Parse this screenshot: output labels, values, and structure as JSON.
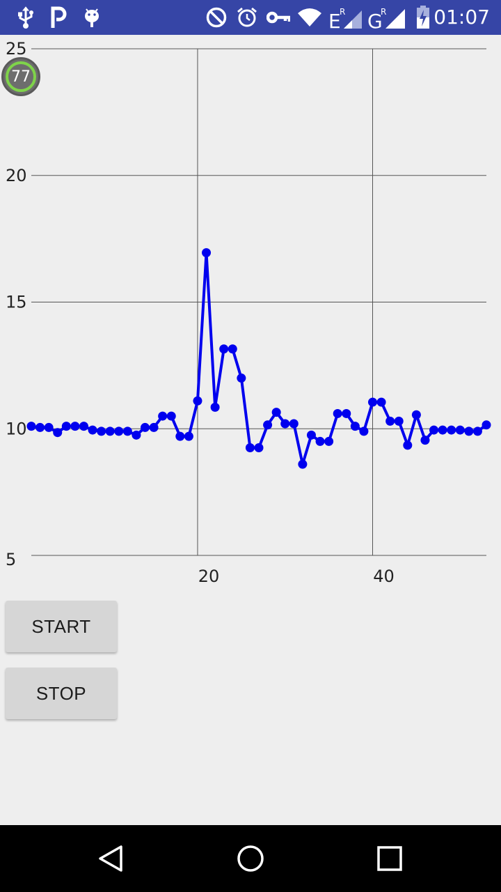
{
  "status_bar": {
    "time": "01:07",
    "icons": [
      "usb-icon",
      "parking-app-icon",
      "android-debug-icon",
      "do-not-disturb-icon",
      "alarm-icon",
      "vpn-key-icon",
      "wifi-icon",
      "signal-roaming-e-icon",
      "signal-roaming-g-icon",
      "battery-charging-icon"
    ],
    "network_labels": {
      "e": "E",
      "g": "G",
      "roam": "R"
    }
  },
  "badge": {
    "value": "77",
    "ring_color": "#7fd34a"
  },
  "chart_data": {
    "type": "line",
    "x": [
      1,
      2,
      3,
      4,
      5,
      6,
      7,
      8,
      9,
      10,
      11,
      12,
      13,
      14,
      15,
      16,
      17,
      18,
      19,
      20,
      21,
      22,
      23,
      24,
      25,
      26,
      27,
      28,
      29,
      30,
      31,
      32,
      33,
      34,
      35,
      36,
      37,
      38,
      39,
      40,
      41,
      42,
      43,
      44,
      45,
      46,
      47,
      48,
      49,
      50,
      51,
      52,
      53
    ],
    "series": [
      {
        "values": [
          10.1,
          10.05,
          10.05,
          9.85,
          10.1,
          10.1,
          10.1,
          9.95,
          9.9,
          9.9,
          9.9,
          9.9,
          9.75,
          10.05,
          10.05,
          10.5,
          10.5,
          9.7,
          9.7,
          11.1,
          16.95,
          10.85,
          13.15,
          13.15,
          12.0,
          9.25,
          9.25,
          10.15,
          10.65,
          10.2,
          10.2,
          8.6,
          9.75,
          9.5,
          9.5,
          10.6,
          10.6,
          10.1,
          9.9,
          11.05,
          11.05,
          10.3,
          10.3,
          9.35,
          10.55,
          9.55,
          9.95,
          9.95,
          9.95,
          9.95,
          9.9,
          9.9,
          10.15
        ],
        "color": "#0000ee"
      }
    ],
    "xticks": [
      "20",
      "40"
    ],
    "yticks": [
      "5",
      "10",
      "15",
      "20",
      "25"
    ],
    "xlim": [
      1,
      53
    ],
    "ylim": [
      5,
      25
    ],
    "grid": true
  },
  "buttons": {
    "start_label": "START",
    "stop_label": "STOP"
  },
  "nav": [
    "back-icon",
    "home-icon",
    "recents-icon"
  ]
}
